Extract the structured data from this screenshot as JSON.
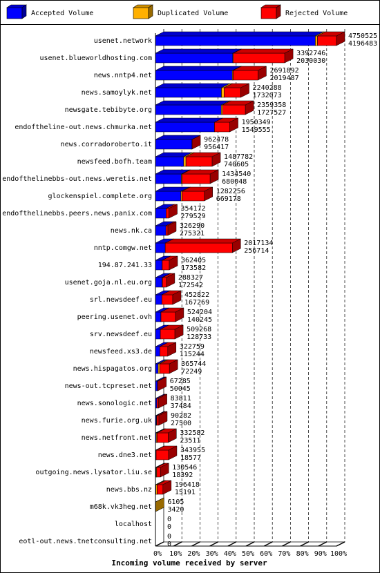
{
  "chart_data": {
    "type": "bar3d_stacked_horizontal",
    "title": "Incoming volume received by server",
    "categories": [
      "usenet.network",
      "usenet.blueworldhosting.com",
      "news.nntp4.net",
      "news.samoylyk.net",
      "newsgate.tebibyte.org",
      "endoftheline-out.news.chmurka.net",
      "news.corradoroberto.it",
      "newsfeed.bofh.team",
      "endofthelinebbs-out.news.weretis.net",
      "glockenspiel.complete.org",
      "endofthelinebbs.peers.news.panix.com",
      "news.nk.ca",
      "nntp.comgw.net",
      "194.87.241.33",
      "usenet.goja.nl.eu.org",
      "srl.newsdeef.eu",
      "peering.usenet.ovh",
      "srv.newsdeef.eu",
      "newsfeed.xs3.de",
      "news.hispagatos.org",
      "news-out.tcpreset.net",
      "news.sonologic.net",
      "news.furie.org.uk",
      "news.netfront.net",
      "news.dne3.net",
      "outgoing.news.lysator.liu.se",
      "news.bbs.nz",
      "m68k.vk3heg.net",
      "localhost",
      "eotl-out.news.tnetconsulting.net"
    ],
    "totals": [
      4750525,
      3392746,
      2691892,
      2240288,
      2359358,
      1950349,
      962478,
      1487782,
      1434540,
      1282256,
      354172,
      326290,
      2017134,
      362405,
      288327,
      452822,
      524204,
      509268,
      322759,
      365744,
      67285,
      83811,
      90282,
      332582,
      343955,
      130546,
      196418,
      6105,
      0,
      0
    ],
    "series": [
      {
        "name": "Accepted Volume",
        "color": "#0000ff",
        "values": [
          4196483,
          2030030,
          2019487,
          1732073,
          1727527,
          1549555,
          956417,
          740605,
          680048,
          669178,
          279529,
          275321,
          256714,
          173582,
          172542,
          167269,
          140245,
          128733,
          115244,
          72249,
          50045,
          37484,
          27500,
          23511,
          18577,
          18392,
          15191,
          3420,
          0,
          0
        ]
      },
      {
        "name": "Duplicated Volume",
        "color": "#ffb000",
        "values": [
          55000,
          15000,
          20000,
          70000,
          35000,
          0,
          0,
          60000,
          20000,
          30000,
          0,
          0,
          0,
          5000,
          10000,
          0,
          5000,
          0,
          0,
          40000,
          0,
          0,
          10000,
          20000,
          0,
          15000,
          30000,
          2685,
          0,
          0
        ]
      },
      {
        "name": "Rejected Volume",
        "color": "#ff0000",
        "values": [
          499042,
          1347716,
          652405,
          438215,
          596831,
          400794,
          6061,
          687177,
          734492,
          583078,
          74643,
          50969,
          1760420,
          183823,
          105785,
          285553,
          378959,
          380535,
          207515,
          253495,
          17240,
          46327,
          52782,
          289071,
          325378,
          97154,
          151227,
          0,
          0,
          0
        ]
      }
    ],
    "xlim": [
      0,
      4750525
    ],
    "xticks": [
      {
        "value": 0,
        "label": "0%"
      },
      {
        "value": 475052.5,
        "label": "10%"
      },
      {
        "value": 950105,
        "label": "20%"
      },
      {
        "value": 1425157.5,
        "label": "30%"
      },
      {
        "value": 1900210,
        "label": "40%"
      },
      {
        "value": 2375262.5,
        "label": "50%"
      },
      {
        "value": 2850315,
        "label": "60%"
      },
      {
        "value": 3325367.5,
        "label": "70%"
      },
      {
        "value": 3800420,
        "label": "80%"
      },
      {
        "value": 4275472.5,
        "label": "90%"
      },
      {
        "value": 4750525,
        "label": "100%"
      }
    ],
    "grid": true
  }
}
